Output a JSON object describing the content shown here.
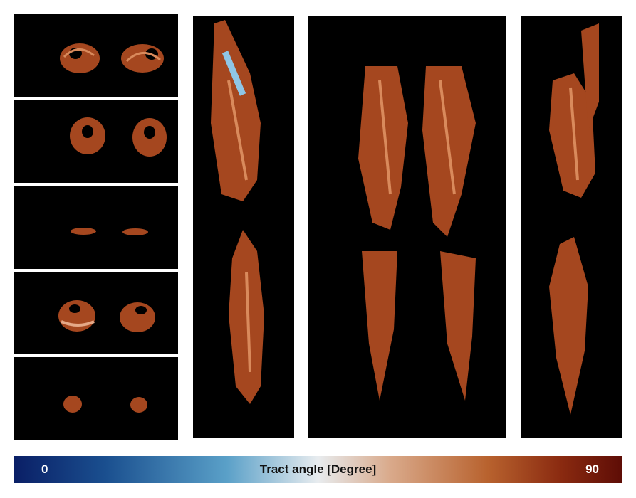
{
  "figure": {
    "panels": {
      "axial_slices": [
        "axial-slice-1",
        "axial-slice-2",
        "axial-slice-3",
        "axial-slice-4",
        "axial-slice-5"
      ],
      "projections": [
        "sagittal-left",
        "coronal",
        "sagittal-right"
      ]
    },
    "colors": {
      "background": "#000000",
      "tissue_primary": "#a5471f",
      "tissue_highlight": "#d98a5c",
      "tissue_low_angle": "#8fc6e6"
    },
    "colorbar": {
      "min_label": "0",
      "max_label": "90",
      "title": "Tract angle [Degree]",
      "stops": [
        "#0a1f66",
        "#5aa0c8",
        "#e8ecef",
        "#b8622e",
        "#5e0d06"
      ]
    }
  }
}
